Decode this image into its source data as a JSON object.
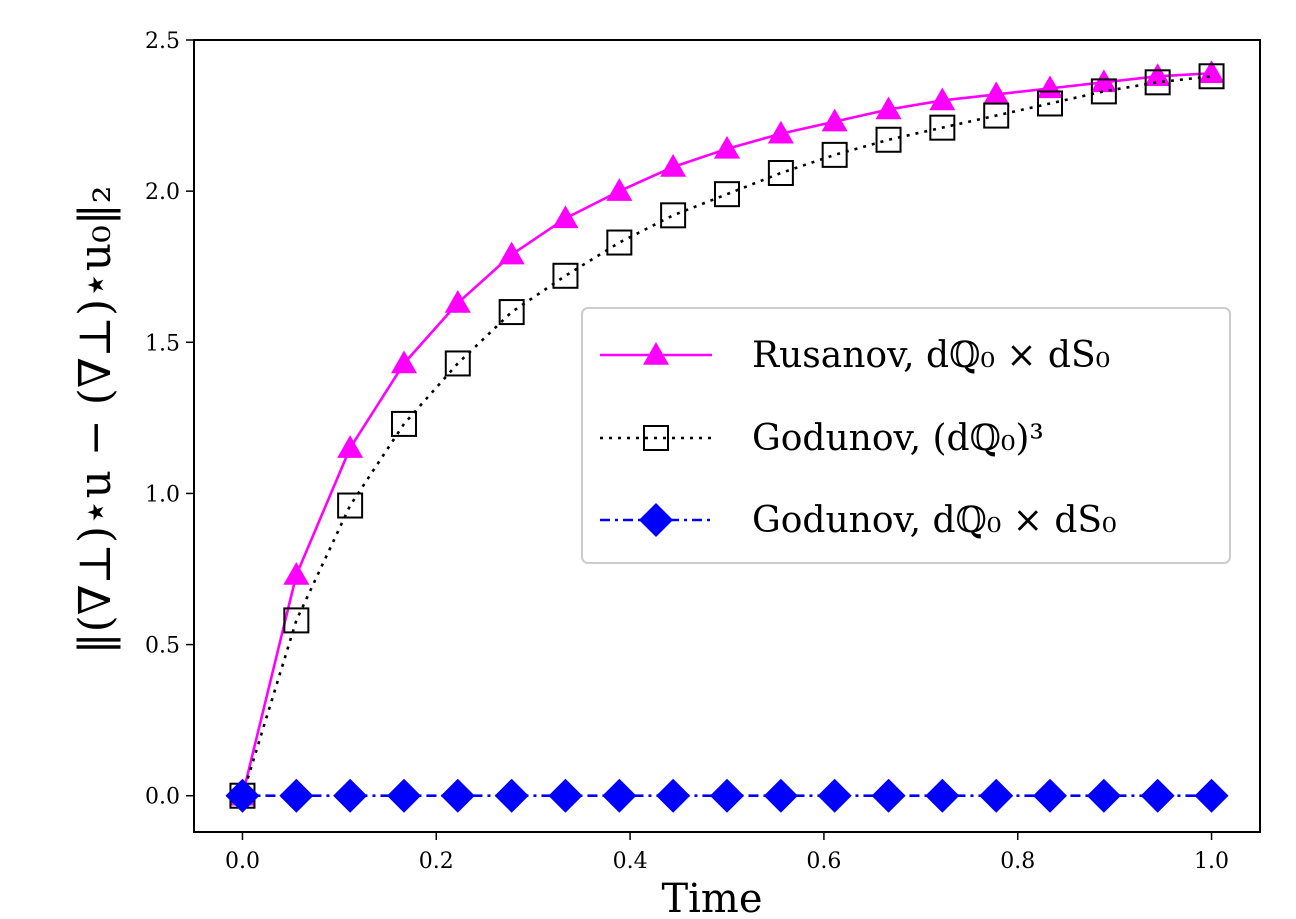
{
  "chart_data": {
    "type": "line",
    "xlabel": "Time",
    "ylabel": "‖(∇⊥)⋆u − (∇⊥)⋆u₀‖₂",
    "xlim": [
      -0.05,
      1.05
    ],
    "ylim": [
      -0.12,
      2.5
    ],
    "xticks": [
      0.0,
      0.2,
      0.4,
      0.6,
      0.8,
      1.0
    ],
    "xtick_labels": [
      "0.0",
      "0.2",
      "0.4",
      "0.6",
      "0.8",
      "1.0"
    ],
    "yticks": [
      0.0,
      0.5,
      1.0,
      1.5,
      2.0,
      2.5
    ],
    "ytick_labels": [
      "0.0",
      "0.5",
      "1.0",
      "1.5",
      "2.0",
      "2.5"
    ],
    "grid": false,
    "legend_position": "center-right",
    "x": [
      0.0,
      0.0556,
      0.1111,
      0.1667,
      0.2222,
      0.2778,
      0.3333,
      0.3889,
      0.4444,
      0.5,
      0.5556,
      0.6111,
      0.6667,
      0.7222,
      0.7778,
      0.8333,
      0.8889,
      0.9444,
      1.0
    ],
    "series": [
      {
        "name": "Rusanov, dℚ₀ × dS₀",
        "color": "#ff00ff",
        "linestyle": "solid",
        "marker": "triangle",
        "values": [
          0.0,
          0.73,
          1.15,
          1.43,
          1.63,
          1.79,
          1.91,
          2.0,
          2.08,
          2.14,
          2.19,
          2.23,
          2.27,
          2.3,
          2.32,
          2.34,
          2.36,
          2.38,
          2.39
        ]
      },
      {
        "name": "Godunov, (dℚ₀)³",
        "color": "#000000",
        "linestyle": "dotted",
        "marker": "square-open",
        "values": [
          0.0,
          0.58,
          0.96,
          1.23,
          1.43,
          1.6,
          1.72,
          1.83,
          1.92,
          1.99,
          2.06,
          2.12,
          2.17,
          2.21,
          2.25,
          2.29,
          2.33,
          2.36,
          2.38
        ]
      },
      {
        "name": "Godunov, dℚ₀ × dS₀",
        "color": "#0000ff",
        "linestyle": "dashdot",
        "marker": "diamond",
        "values": [
          0.0,
          0.0,
          0.0,
          0.0,
          0.0,
          0.0,
          0.0,
          0.0,
          0.0,
          0.0,
          0.0,
          0.0,
          0.0,
          0.0,
          0.0,
          0.0,
          0.0,
          0.0,
          0.0
        ]
      }
    ]
  }
}
